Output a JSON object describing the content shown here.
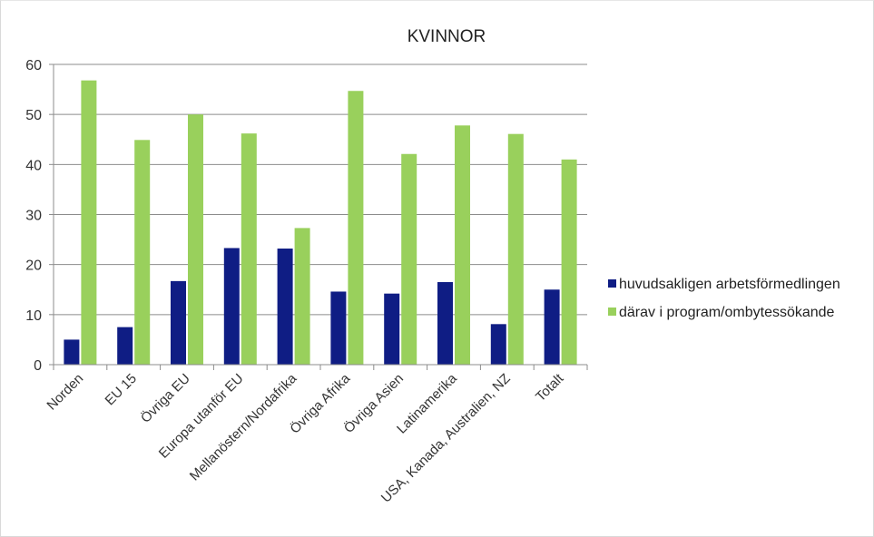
{
  "chart_data": {
    "type": "bar",
    "title": "KVINNOR",
    "categories": [
      "Norden",
      "EU 15",
      "Övriga EU",
      "Europa utanför EU",
      "Mellanöstern/Nordafrika",
      "Övriga Afrika",
      "Övriga Asien",
      "Latinamerika",
      "USA, Kanada, Australien, NZ",
      "Totalt"
    ],
    "series": [
      {
        "name": "huvudsakligen arbetsförmedlingen",
        "color": "#0f1d84",
        "values": [
          5,
          7.5,
          16.7,
          23.3,
          23.2,
          14.6,
          14.2,
          16.5,
          8.1,
          15
        ]
      },
      {
        "name": "därav i program/ombytessökande",
        "color": "#99d05c",
        "values": [
          56.8,
          44.9,
          50,
          46.2,
          27.3,
          54.7,
          42.1,
          47.8,
          46.1,
          41
        ]
      }
    ],
    "ylim": [
      0,
      60
    ],
    "yticks": [
      0,
      10,
      20,
      30,
      40,
      50,
      60
    ],
    "grid": true,
    "legend_position": "right"
  }
}
